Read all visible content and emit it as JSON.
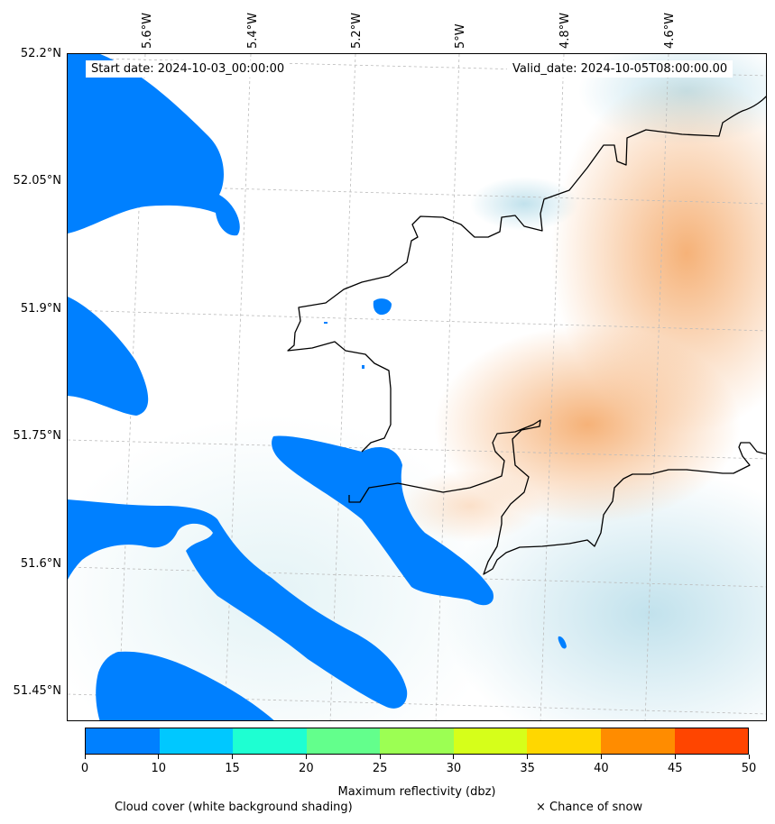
{
  "header": {
    "start_date": "Start date: 2024-10-03_00:00:00",
    "valid_date": "Valid_date: 2024-10-05T08:00:00.00"
  },
  "axes": {
    "longitude_labels": [
      "5.6°W",
      "5.4°W",
      "5.2°W",
      "5°W",
      "4.8°W",
      "4.6°W"
    ],
    "latitude_labels": [
      "52.2°N",
      "52.05°N",
      "51.9°N",
      "51.75°N",
      "51.6°N",
      "51.45°N"
    ]
  },
  "colorbar": {
    "title": "Maximum reflectivity (dbz)",
    "ticks": [
      "0",
      "10",
      "15",
      "20",
      "25",
      "30",
      "35",
      "40",
      "45",
      "50"
    ],
    "colors": [
      "#0080ff",
      "#00c8ff",
      "#1effd2",
      "#63ff8c",
      "#9cff53",
      "#d6ff1a",
      "#ffd700",
      "#ff8c00",
      "#ff4500"
    ]
  },
  "legend": {
    "cloud_cover": "Cloud cover (white background shading)",
    "snow": "× Chance of snow"
  },
  "colors": {
    "reflectivity_band": "#0080ff",
    "coastline": "#000000",
    "warm_shading": "#f4a460",
    "cool_shading": "#add8e6"
  }
}
